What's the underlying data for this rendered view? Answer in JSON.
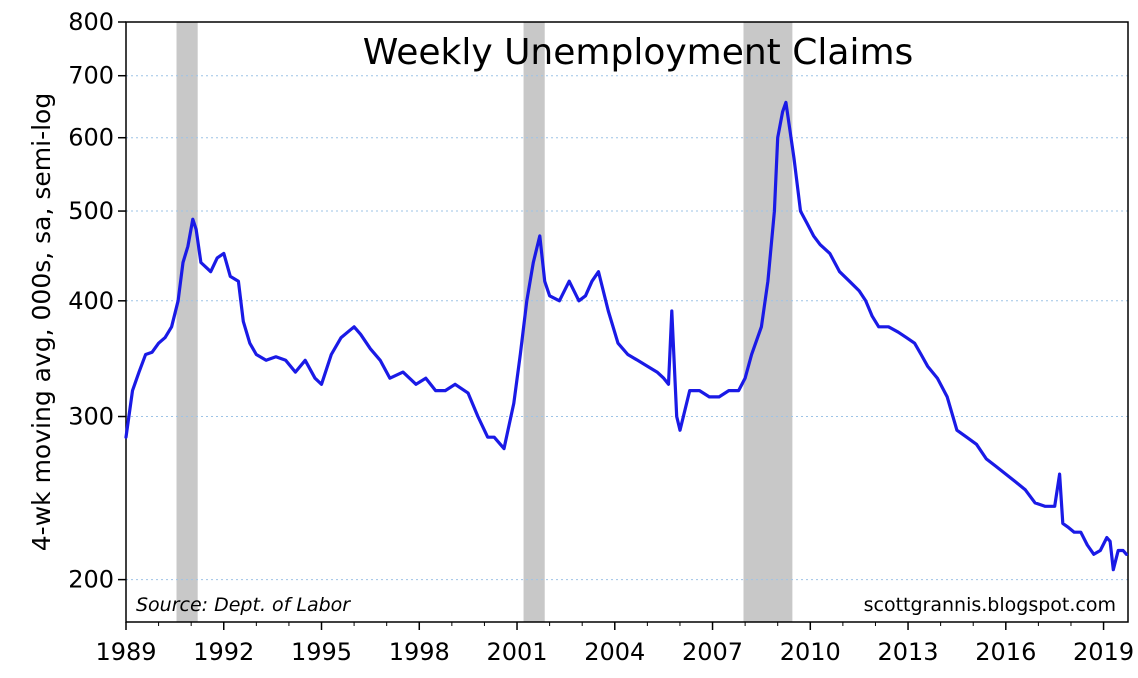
{
  "chart_data": {
    "type": "line",
    "title": "Weekly Unemployment Claims",
    "ylabel": "4-wk moving avg, 000s, sa, semi-log",
    "xlabel": "",
    "y_scale": "log",
    "ylim": [
      180,
      800
    ],
    "xlim": [
      1989.0,
      2019.75
    ],
    "y_ticks": [
      200,
      300,
      400,
      500,
      600,
      700,
      800
    ],
    "x_ticks": [
      1989,
      1992,
      1995,
      1998,
      2001,
      2004,
      2007,
      2010,
      2013,
      2016,
      2019
    ],
    "grid": "horizontal dotted",
    "line_color": "#1a1ae6",
    "shade_color": "#c8c8c8",
    "recessions": [
      [
        1990.55,
        1991.2
      ],
      [
        2001.2,
        2001.85
      ],
      [
        2007.95,
        2009.45
      ]
    ],
    "source": "Source: Dept. of Labor",
    "credit": "scottgrannis.blogspot.com",
    "series": [
      {
        "x": [
          1989.0,
          1989.2,
          1989.4,
          1989.6,
          1989.8,
          1990.0,
          1990.2,
          1990.4,
          1990.6,
          1990.75,
          1990.9,
          1991.05,
          1991.15,
          1991.3,
          1991.45,
          1991.6,
          1991.8,
          1992.0,
          1992.2,
          1992.45,
          1992.6,
          1992.8,
          1993.0,
          1993.3,
          1993.6,
          1993.9,
          1994.2,
          1994.5,
          1994.8,
          1995.0,
          1995.3,
          1995.6,
          1995.8,
          1996.0,
          1996.2,
          1996.5,
          1996.8,
          1997.1,
          1997.5,
          1997.9,
          1998.2,
          1998.5,
          1998.8,
          1999.1,
          1999.5,
          1999.8,
          2000.1,
          2000.3,
          2000.6,
          2000.9,
          2001.1,
          2001.3,
          2001.5,
          2001.7,
          2001.85,
          2002.0,
          2002.3,
          2002.6,
          2002.9,
          2003.1,
          2003.3,
          2003.5,
          2003.8,
          2004.1,
          2004.4,
          2004.7,
          2005.0,
          2005.3,
          2005.5,
          2005.65,
          2005.75,
          2005.9,
          2006.0,
          2006.3,
          2006.6,
          2006.9,
          2007.2,
          2007.5,
          2007.8,
          2008.0,
          2008.2,
          2008.5,
          2008.7,
          2008.9,
          2009.0,
          2009.15,
          2009.25,
          2009.35,
          2009.5,
          2009.7,
          2009.9,
          2010.1,
          2010.3,
          2010.6,
          2010.9,
          2011.2,
          2011.5,
          2011.7,
          2011.9,
          2012.1,
          2012.4,
          2012.7,
          2012.95,
          2013.2,
          2013.4,
          2013.6,
          2013.9,
          2014.2,
          2014.5,
          2014.8,
          2015.1,
          2015.4,
          2015.7,
          2016.0,
          2016.3,
          2016.6,
          2016.9,
          2017.2,
          2017.5,
          2017.65,
          2017.75,
          2017.9,
          2018.1,
          2018.3,
          2018.5,
          2018.7,
          2018.9,
          2019.1,
          2019.2,
          2019.3,
          2019.45,
          2019.6,
          2019.7
        ],
        "y": [
          285,
          320,
          335,
          350,
          352,
          360,
          365,
          375,
          400,
          440,
          458,
          490,
          478,
          440,
          435,
          430,
          445,
          450,
          425,
          420,
          380,
          360,
          350,
          345,
          348,
          345,
          335,
          345,
          330,
          325,
          350,
          365,
          370,
          375,
          368,
          355,
          345,
          330,
          335,
          325,
          330,
          320,
          320,
          325,
          318,
          300,
          285,
          285,
          277,
          310,
          350,
          400,
          440,
          470,
          420,
          405,
          400,
          420,
          400,
          405,
          420,
          430,
          390,
          360,
          350,
          345,
          340,
          335,
          330,
          325,
          390,
          300,
          290,
          320,
          320,
          315,
          315,
          320,
          320,
          330,
          350,
          375,
          420,
          500,
          600,
          640,
          655,
          620,
          570,
          500,
          485,
          470,
          460,
          450,
          430,
          420,
          410,
          400,
          385,
          375,
          375,
          370,
          365,
          360,
          350,
          340,
          330,
          315,
          290,
          285,
          280,
          270,
          265,
          260,
          255,
          250,
          242,
          240,
          240,
          260,
          230,
          228,
          225,
          225,
          218,
          213,
          215,
          222,
          220,
          205,
          215,
          215,
          213
        ]
      }
    ]
  }
}
